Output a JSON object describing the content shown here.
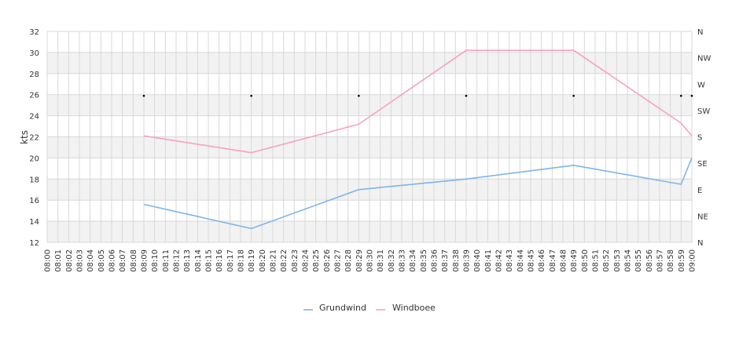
{
  "chart_data": {
    "type": "line",
    "x": [
      "08:00",
      "08:01",
      "08:02",
      "08:03",
      "08:04",
      "08:05",
      "08:06",
      "08:07",
      "08:08",
      "08:09",
      "08:10",
      "08:11",
      "08:12",
      "08:13",
      "08:14",
      "08:15",
      "08:16",
      "08:17",
      "08:18",
      "08:19",
      "08:20",
      "08:21",
      "08:22",
      "08:23",
      "08:24",
      "08:25",
      "08:26",
      "08:27",
      "08:28",
      "08:29",
      "08:30",
      "08:31",
      "08:32",
      "08:33",
      "08:34",
      "08:35",
      "08:36",
      "08:37",
      "08:38",
      "08:39",
      "08:40",
      "08:41",
      "08:42",
      "08:43",
      "08:44",
      "08:45",
      "08:46",
      "08:47",
      "08:48",
      "08:49",
      "08:50",
      "08:51",
      "08:52",
      "08:53",
      "08:54",
      "08:55",
      "08:56",
      "08:57",
      "08:58",
      "08:59",
      "09:00"
    ],
    "ylabel": "kts",
    "ylim": [
      12,
      32
    ],
    "yticks": [
      12,
      14,
      16,
      18,
      20,
      22,
      24,
      26,
      28,
      30,
      32
    ],
    "y2ticks": [
      "N",
      "NE",
      "E",
      "SE",
      "S",
      "SW",
      "W",
      "NW",
      "N"
    ],
    "y2lim": [
      0,
      360
    ],
    "series": [
      {
        "name": "Grundwind",
        "color": "#7cb5ec",
        "points": [
          [
            "08:09",
            15.6
          ],
          [
            "08:19",
            13.3
          ],
          [
            "08:29",
            17.0
          ],
          [
            "08:39",
            18.0
          ],
          [
            "08:49",
            19.3
          ],
          [
            "08:59",
            17.5
          ],
          [
            "09:00",
            20.0
          ]
        ]
      },
      {
        "name": "Windboee",
        "color": "#f7a1c4",
        "points": [
          [
            "08:09",
            22.1
          ],
          [
            "08:19",
            20.5
          ],
          [
            "08:29",
            23.2
          ],
          [
            "08:39",
            30.2
          ],
          [
            "08:49",
            30.2
          ],
          [
            "08:59",
            23.3
          ],
          [
            "09:00",
            22.1
          ]
        ]
      }
    ],
    "direction": {
      "axis": "right",
      "points": [
        [
          "08:09",
          250
        ],
        [
          "08:19",
          250
        ],
        [
          "08:29",
          250
        ],
        [
          "08:39",
          250
        ],
        [
          "08:49",
          250
        ],
        [
          "08:59",
          250
        ],
        [
          "09:00",
          250
        ]
      ]
    },
    "grid": true,
    "legend": "bottom-center"
  }
}
